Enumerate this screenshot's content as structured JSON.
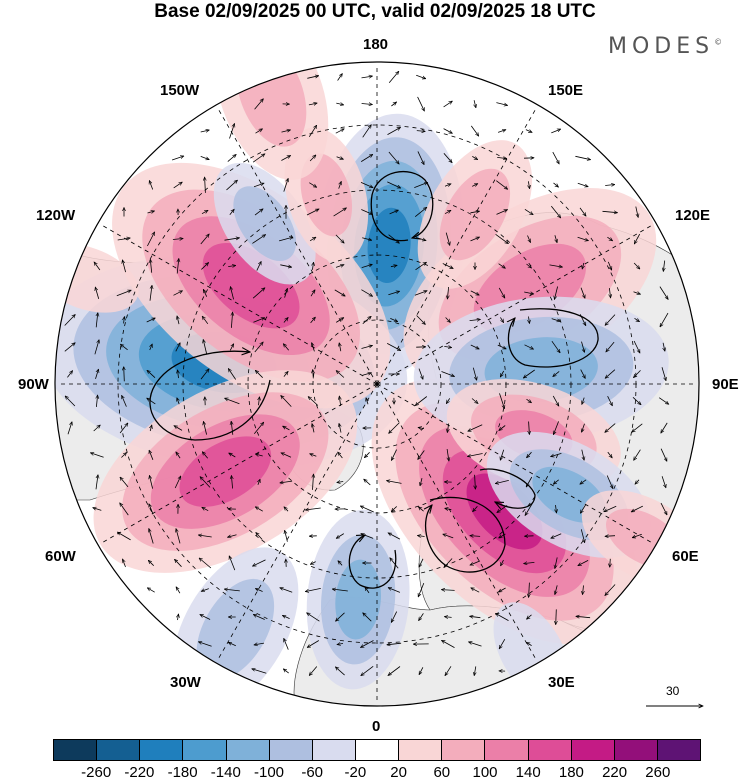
{
  "title": "Base 02/09/2025 00 UTC, valid 02/09/2025 18 UTC",
  "logo": {
    "text": "MODES",
    "mark": "©"
  },
  "longitude_labels": {
    "top": "180",
    "bottom": "0",
    "left": "90W",
    "right": "90E",
    "top_left": "150W",
    "top_right": "150E",
    "upper_left": "120W",
    "upper_right": "120E",
    "lower_left": "60W",
    "lower_right": "60E",
    "bottom_left": "30W",
    "bottom_right": "30E"
  },
  "reference_vector": {
    "label": "30"
  },
  "colorbar": {
    "colors": [
      "#0d3a5c",
      "#145f92",
      "#1f7fbd",
      "#4d9ccf",
      "#7fb1d9",
      "#aebfe0",
      "#d9dcef",
      "#ffffff",
      "#f9d6d6",
      "#f3adbc",
      "#eb7fa8",
      "#de4d97",
      "#c41b85",
      "#930f7a",
      "#5e1374"
    ],
    "ticks": [
      "-260",
      "-220",
      "-180",
      "-140",
      "-100",
      "-60",
      "-20",
      "20",
      "60",
      "100",
      "140",
      "180",
      "220",
      "260"
    ]
  },
  "anomalies": [
    {
      "lon": 175,
      "colat": 27,
      "value": -180,
      "spread": 1.0
    },
    {
      "lon": 262,
      "colat": 30,
      "value": -200,
      "spread": 1.5
    },
    {
      "lon": 232,
      "colat": 31,
      "value": 150,
      "spread": 1.6
    },
    {
      "lon": 300,
      "colat": 34,
      "value": 160,
      "spread": 1.4
    },
    {
      "lon": 45,
      "colat": 35,
      "value": 180,
      "spread": 1.3
    },
    {
      "lon": 355,
      "colat": 42,
      "value": -120,
      "spread": 1.0
    },
    {
      "lon": 122,
      "colat": 35,
      "value": 100,
      "spread": 1.8
    },
    {
      "lon": 95,
      "colat": 32,
      "value": -110,
      "spread": 1.6
    },
    {
      "lon": 72,
      "colat": 32,
      "value": 100,
      "spread": 1.0
    },
    {
      "lon": 60,
      "colat": 43,
      "value": -120,
      "spread": 1.0
    },
    {
      "lon": 215,
      "colat": 38,
      "value": -60,
      "spread": 1.0
    },
    {
      "lon": 195,
      "colat": 38,
      "value": 70,
      "spread": 1.0
    },
    {
      "lon": 150,
      "colat": 38,
      "value": 90,
      "spread": 1.3
    },
    {
      "lon": 200,
      "colat": 60,
      "value": 90,
      "spread": 1.5
    },
    {
      "lon": 330,
      "colat": 55,
      "value": -60,
      "spread": 1.5
    },
    {
      "lon": 30,
      "colat": 60,
      "value": -50,
      "spread": 1.3
    },
    {
      "lon": 250,
      "colat": 60,
      "value": 50,
      "spread": 1.3
    },
    {
      "lon": 60,
      "colat": 60,
      "value": 60,
      "spread": 1.0
    }
  ]
}
